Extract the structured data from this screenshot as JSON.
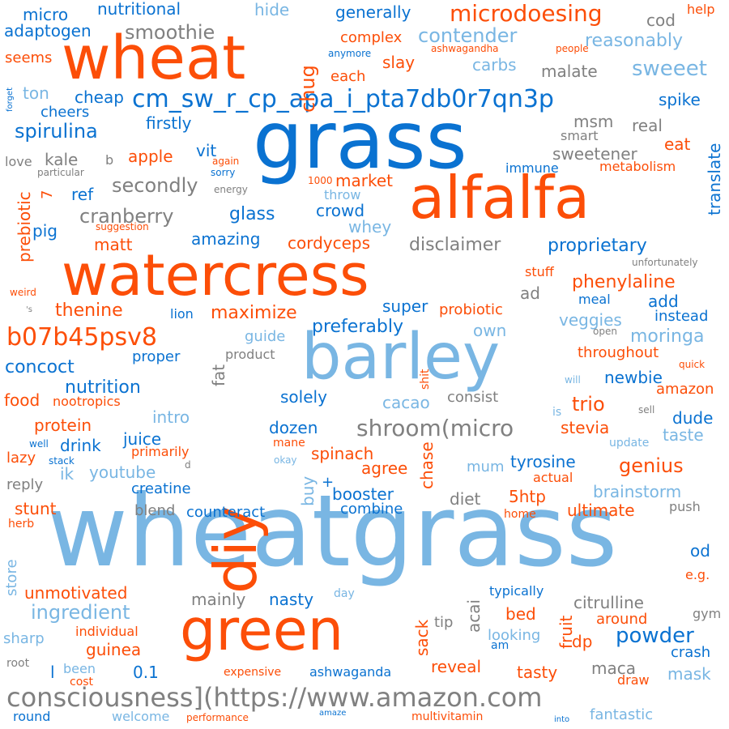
{
  "colors": {
    "orange": "#fc4e08",
    "blue": "#0a72d1",
    "lightblue": "#79b6e3",
    "gray": "#808080"
  },
  "words": [
    {
      "text": "wheatgrass",
      "c": "lightblue"
    },
    {
      "text": "grass",
      "c": "blue"
    },
    {
      "text": "barley",
      "c": "lightblue"
    },
    {
      "text": "wheat",
      "c": "orange"
    },
    {
      "text": "alfalfa",
      "c": "orange"
    },
    {
      "text": "watercress",
      "c": "orange"
    },
    {
      "text": "green",
      "c": "orange"
    },
    {
      "text": "diy",
      "c": "orange"
    },
    {
      "text": "consciousness](https://www.amazon.com",
      "c": "gray"
    },
    {
      "text": "cm_sw_r_cp_apa_i_pta7db0r7qn3p",
      "c": "blue"
    },
    {
      "text": "b07b45psv8",
      "c": "orange"
    },
    {
      "text": "microdoesing",
      "c": "orange"
    },
    {
      "text": "shroom(micro",
      "c": "gray"
    },
    {
      "text": "spirulina",
      "c": "blue"
    },
    {
      "text": "micro",
      "c": "blue"
    },
    {
      "text": "adaptogen",
      "c": "blue"
    },
    {
      "text": "nutritional",
      "c": "blue"
    },
    {
      "text": "hide",
      "c": "lightblue"
    },
    {
      "text": "generally",
      "c": "blue"
    },
    {
      "text": "cod",
      "c": "gray"
    },
    {
      "text": "help",
      "c": "orange"
    },
    {
      "text": "smoothie",
      "c": "gray"
    },
    {
      "text": "contender",
      "c": "lightblue"
    },
    {
      "text": "reasonably",
      "c": "lightblue"
    },
    {
      "text": "seems",
      "c": "orange"
    },
    {
      "text": "ton",
      "c": "lightblue"
    },
    {
      "text": "cheers",
      "c": "blue"
    },
    {
      "text": "cheap",
      "c": "blue"
    },
    {
      "text": "chug",
      "c": "orange"
    },
    {
      "text": "slay",
      "c": "orange"
    },
    {
      "text": "complex",
      "c": "orange"
    },
    {
      "text": "ashwagandha",
      "c": "orange"
    },
    {
      "text": "people",
      "c": "orange"
    },
    {
      "text": "anymore",
      "c": "blue"
    },
    {
      "text": "each",
      "c": "orange"
    },
    {
      "text": "carbs",
      "c": "lightblue"
    },
    {
      "text": "malate",
      "c": "gray"
    },
    {
      "text": "sweeet",
      "c": "lightblue"
    },
    {
      "text": "forget",
      "c": "blue"
    },
    {
      "text": "spike",
      "c": "blue"
    },
    {
      "text": "msm",
      "c": "gray"
    },
    {
      "text": "real",
      "c": "gray"
    },
    {
      "text": "smart",
      "c": "gray"
    },
    {
      "text": "eat",
      "c": "orange"
    },
    {
      "text": "firstly",
      "c": "blue"
    },
    {
      "text": "love",
      "c": "gray"
    },
    {
      "text": "kale",
      "c": "gray"
    },
    {
      "text": "b",
      "c": "gray"
    },
    {
      "text": "apple",
      "c": "orange"
    },
    {
      "text": "vit",
      "c": "blue"
    },
    {
      "text": "again",
      "c": "orange"
    },
    {
      "text": "sorry",
      "c": "blue"
    },
    {
      "text": "particular",
      "c": "gray"
    },
    {
      "text": "sweetener",
      "c": "gray"
    },
    {
      "text": "immune",
      "c": "blue"
    },
    {
      "text": "metabolism",
      "c": "orange"
    },
    {
      "text": "translate",
      "c": "blue"
    },
    {
      "text": "ref",
      "c": "blue"
    },
    {
      "text": "secondly",
      "c": "gray"
    },
    {
      "text": "energy",
      "c": "gray"
    },
    {
      "text": "1000",
      "c": "orange"
    },
    {
      "text": "market",
      "c": "orange"
    },
    {
      "text": "throw",
      "c": "lightblue"
    },
    {
      "text": "crowd",
      "c": "blue"
    },
    {
      "text": "prebiotic",
      "c": "orange"
    },
    {
      "text": "7",
      "c": "orange"
    },
    {
      "text": "cranberry",
      "c": "gray"
    },
    {
      "text": "glass",
      "c": "blue"
    },
    {
      "text": "whey",
      "c": "lightblue"
    },
    {
      "text": "pig",
      "c": "blue"
    },
    {
      "text": "suggestion",
      "c": "orange"
    },
    {
      "text": "matt",
      "c": "orange"
    },
    {
      "text": "amazing",
      "c": "blue"
    },
    {
      "text": "cordyceps",
      "c": "orange"
    },
    {
      "text": "disclaimer",
      "c": "gray"
    },
    {
      "text": "proprietary",
      "c": "blue"
    },
    {
      "text": "unfortunately",
      "c": "gray"
    },
    {
      "text": "stuff",
      "c": "orange"
    },
    {
      "text": "phenylaline",
      "c": "orange"
    },
    {
      "text": "weird",
      "c": "orange"
    },
    {
      "text": "'s",
      "c": "gray"
    },
    {
      "text": "thenine",
      "c": "orange"
    },
    {
      "text": "lion",
      "c": "blue"
    },
    {
      "text": "maximize",
      "c": "orange"
    },
    {
      "text": "super",
      "c": "blue"
    },
    {
      "text": "probiotic",
      "c": "orange"
    },
    {
      "text": "ad",
      "c": "gray"
    },
    {
      "text": "meal",
      "c": "blue"
    },
    {
      "text": "add",
      "c": "blue"
    },
    {
      "text": "instead",
      "c": "blue"
    },
    {
      "text": "veggies",
      "c": "lightblue"
    },
    {
      "text": "open",
      "c": "gray"
    },
    {
      "text": "moringa",
      "c": "lightblue"
    },
    {
      "text": "preferably",
      "c": "blue"
    },
    {
      "text": "own",
      "c": "lightblue"
    },
    {
      "text": "guide",
      "c": "lightblue"
    },
    {
      "text": "fat",
      "c": "gray"
    },
    {
      "text": "proper",
      "c": "blue"
    },
    {
      "text": "product",
      "c": "gray"
    },
    {
      "text": "throughout",
      "c": "orange"
    },
    {
      "text": "concoct",
      "c": "blue"
    },
    {
      "text": "shit",
      "c": "orange"
    },
    {
      "text": "quick",
      "c": "orange"
    },
    {
      "text": "newbie",
      "c": "blue"
    },
    {
      "text": "will",
      "c": "lightblue"
    },
    {
      "text": "nutrition",
      "c": "blue"
    },
    {
      "text": "amazon",
      "c": "orange"
    },
    {
      "text": "food",
      "c": "orange"
    },
    {
      "text": "nootropics",
      "c": "orange"
    },
    {
      "text": "solely",
      "c": "blue"
    },
    {
      "text": "consist",
      "c": "gray"
    },
    {
      "text": "trio",
      "c": "orange"
    },
    {
      "text": "cacao",
      "c": "lightblue"
    },
    {
      "text": "is",
      "c": "lightblue"
    },
    {
      "text": "sell",
      "c": "gray"
    },
    {
      "text": "intro",
      "c": "lightblue"
    },
    {
      "text": "protein",
      "c": "orange"
    },
    {
      "text": "dozen",
      "c": "blue"
    },
    {
      "text": "stevia",
      "c": "orange"
    },
    {
      "text": "dude",
      "c": "blue"
    },
    {
      "text": "juice",
      "c": "blue"
    },
    {
      "text": "taste",
      "c": "lightblue"
    },
    {
      "text": "well",
      "c": "blue"
    },
    {
      "text": "drink",
      "c": "blue"
    },
    {
      "text": "mane",
      "c": "orange"
    },
    {
      "text": "update",
      "c": "lightblue"
    },
    {
      "text": "primarily",
      "c": "orange"
    },
    {
      "text": "lazy",
      "c": "orange"
    },
    {
      "text": "stack",
      "c": "blue"
    },
    {
      "text": "okay",
      "c": "lightblue"
    },
    {
      "text": "spinach",
      "c": "orange"
    },
    {
      "text": "genius",
      "c": "orange"
    },
    {
      "text": "tyrosine",
      "c": "blue"
    },
    {
      "text": "ik",
      "c": "lightblue"
    },
    {
      "text": "youtube",
      "c": "lightblue"
    },
    {
      "text": "d",
      "c": "gray"
    },
    {
      "text": "agree",
      "c": "orange"
    },
    {
      "text": "mum",
      "c": "lightblue"
    },
    {
      "text": "chase",
      "c": "orange"
    },
    {
      "text": "actual",
      "c": "orange"
    },
    {
      "text": "reply",
      "c": "gray"
    },
    {
      "text": "creatine",
      "c": "blue"
    },
    {
      "text": "buy",
      "c": "lightblue"
    },
    {
      "text": "+",
      "c": "blue"
    },
    {
      "text": "booster",
      "c": "blue"
    },
    {
      "text": "brainstorm",
      "c": "lightblue"
    },
    {
      "text": "stunt",
      "c": "orange"
    },
    {
      "text": "diet",
      "c": "gray"
    },
    {
      "text": "5htp",
      "c": "orange"
    },
    {
      "text": "combine",
      "c": "blue"
    },
    {
      "text": "blend",
      "c": "gray"
    },
    {
      "text": "counteract",
      "c": "blue"
    },
    {
      "text": "ultimate",
      "c": "orange"
    },
    {
      "text": "push",
      "c": "gray"
    },
    {
      "text": "herb",
      "c": "orange"
    },
    {
      "text": "home",
      "c": "orange"
    },
    {
      "text": "store",
      "c": "lightblue"
    },
    {
      "text": "od",
      "c": "blue"
    },
    {
      "text": "unmotivated",
      "c": "orange"
    },
    {
      "text": "e.g.",
      "c": "orange"
    },
    {
      "text": "typically",
      "c": "blue"
    },
    {
      "text": "mainly",
      "c": "gray"
    },
    {
      "text": "nasty",
      "c": "blue"
    },
    {
      "text": "day",
      "c": "lightblue"
    },
    {
      "text": "acai",
      "c": "gray"
    },
    {
      "text": "citrulline",
      "c": "gray"
    },
    {
      "text": "ingredient",
      "c": "lightblue"
    },
    {
      "text": "bed",
      "c": "orange"
    },
    {
      "text": "fruit",
      "c": "orange"
    },
    {
      "text": "gym",
      "c": "gray"
    },
    {
      "text": "around",
      "c": "orange"
    },
    {
      "text": "tip",
      "c": "gray"
    },
    {
      "text": "sack",
      "c": "orange"
    },
    {
      "text": "individual",
      "c": "orange"
    },
    {
      "text": "powder",
      "c": "blue"
    },
    {
      "text": "looking",
      "c": "lightblue"
    },
    {
      "text": "sharp",
      "c": "lightblue"
    },
    {
      "text": "dp",
      "c": "orange"
    },
    {
      "text": "am",
      "c": "blue"
    },
    {
      "text": "crash",
      "c": "blue"
    },
    {
      "text": "guinea",
      "c": "orange"
    },
    {
      "text": "root",
      "c": "gray"
    },
    {
      "text": "been",
      "c": "lightblue"
    },
    {
      "text": "l",
      "c": "blue"
    },
    {
      "text": "0.1",
      "c": "blue"
    },
    {
      "text": "reveal",
      "c": "orange"
    },
    {
      "text": "tasty",
      "c": "orange"
    },
    {
      "text": "maca",
      "c": "gray"
    },
    {
      "text": "mask",
      "c": "lightblue"
    },
    {
      "text": "cost",
      "c": "orange"
    },
    {
      "text": "expensive",
      "c": "orange"
    },
    {
      "text": "ashwaganda",
      "c": "blue"
    },
    {
      "text": "draw",
      "c": "orange"
    },
    {
      "text": "round",
      "c": "blue"
    },
    {
      "text": "welcome",
      "c": "lightblue"
    },
    {
      "text": "performance",
      "c": "orange"
    },
    {
      "text": "amaze",
      "c": "blue"
    },
    {
      "text": "multivitamin",
      "c": "orange"
    },
    {
      "text": "into",
      "c": "blue"
    },
    {
      "text": "fantastic",
      "c": "lightblue"
    }
  ]
}
